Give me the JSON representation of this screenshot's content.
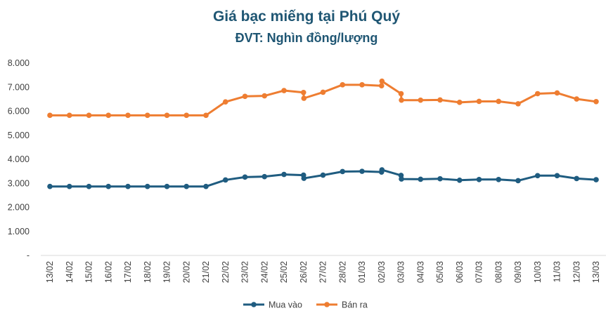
{
  "chart_data": {
    "type": "line",
    "title": "Giá bạc miếng tại Phú Quý",
    "subtitle": "ĐVT: Nghìn đồng/lượng",
    "categories": [
      "13/02",
      "14/02",
      "15/02",
      "16/02",
      "17/02",
      "18/02",
      "19/02",
      "20/02",
      "21/02",
      "22/02",
      "23/02",
      "24/02",
      "25/02",
      "26/02",
      "27/02",
      "28/02",
      "01/03",
      "02/03",
      "03/03",
      "04/03",
      "05/03",
      "06/03",
      "07/03",
      "08/03",
      "09/03",
      "10/03",
      "11/03",
      "12/03",
      "13/03"
    ],
    "x": [
      0,
      1,
      2,
      3,
      4,
      5,
      6,
      7,
      8,
      9,
      10,
      11,
      12,
      13,
      13.02,
      14,
      15,
      16,
      17,
      17.02,
      18,
      18.02,
      19,
      20,
      21,
      22,
      23,
      24,
      25,
      26,
      27,
      28
    ],
    "series": [
      {
        "name": "Mua vào",
        "color": "#1f5c80",
        "values": [
          2870,
          2870,
          2870,
          2870,
          2870,
          2870,
          2870,
          2870,
          2870,
          3140,
          3260,
          3280,
          3370,
          3340,
          3210,
          3340,
          3490,
          3500,
          3470,
          3560,
          3330,
          3180,
          3170,
          3190,
          3130,
          3160,
          3160,
          3110,
          3320,
          3320,
          3200,
          3150
        ]
      },
      {
        "name": "Bán ra",
        "color": "#ee7d31",
        "values": [
          5830,
          5830,
          5830,
          5830,
          5830,
          5830,
          5830,
          5830,
          5830,
          6390,
          6620,
          6640,
          6860,
          6780,
          6540,
          6790,
          7100,
          7100,
          7060,
          7250,
          6730,
          6460,
          6460,
          6470,
          6370,
          6410,
          6410,
          6310,
          6730,
          6760,
          6510,
          6400
        ]
      }
    ],
    "y_ticks": [
      "-",
      "1.000",
      "2.000",
      "3.000",
      "4.000",
      "5.000",
      "6.000",
      "7.000",
      "8.000"
    ],
    "ylim": [
      0,
      8000
    ],
    "grid": false,
    "legend": "bottom"
  }
}
